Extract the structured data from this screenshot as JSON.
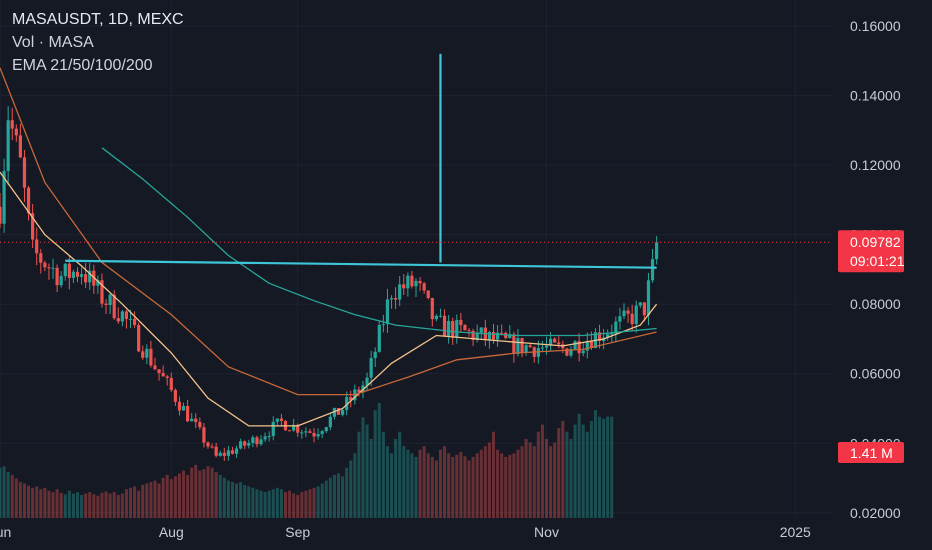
{
  "header": {
    "title": "MASAUSDT, 1D, MEXC",
    "volume_label": "Vol · MASA",
    "ema_label": "EMA 21/50/100/200"
  },
  "colors": {
    "background": "#151924",
    "grid": "#1f2330",
    "axis_text": "#c9ccd4",
    "up": "#26a69a",
    "down": "#ef5350",
    "ema21": "#f5c28a",
    "ema50": "#c8683a",
    "ema200": "#26a69a",
    "trendline": "#3ec6d8",
    "badge": "#f23645"
  },
  "chart_data": {
    "type": "candlestick",
    "title": "MASAUSDT, 1D, MEXC",
    "y_ticks": [
      "0.16000",
      "0.14000",
      "0.12000",
      "0.10000",
      "0.08000",
      "0.06000",
      "0.04000",
      "0.02000"
    ],
    "y_tick_values": [
      0.16,
      0.14,
      0.12,
      0.1,
      0.08,
      0.06,
      0.04,
      0.02
    ],
    "x_ticks": [
      "Jun",
      "Aug",
      "Sep",
      "Nov",
      "2025"
    ],
    "x_tick_dates": [
      "2024-06-20",
      "2024-08-01",
      "2024-09-01",
      "2024-11-01",
      "2025-01-01"
    ],
    "x_range": [
      "2024-06-20",
      "2025-01-10"
    ],
    "y_range": [
      0.0185,
      0.1675
    ],
    "grid": true,
    "last_price": "0.09782",
    "last_price_value": 0.09782,
    "countdown": "09:01:21",
    "volume_last": "1.41 M",
    "anchors": [
      {
        "date": "2024-06-20",
        "price": 0.108
      },
      {
        "date": "2024-06-22",
        "price": 0.135
      },
      {
        "date": "2024-06-25",
        "price": 0.12
      },
      {
        "date": "2024-06-28",
        "price": 0.095
      },
      {
        "date": "2024-07-05",
        "price": 0.088
      },
      {
        "date": "2024-07-10",
        "price": 0.09
      },
      {
        "date": "2024-07-15",
        "price": 0.082
      },
      {
        "date": "2024-07-20",
        "price": 0.077
      },
      {
        "date": "2024-07-28",
        "price": 0.062
      },
      {
        "date": "2024-08-05",
        "price": 0.048
      },
      {
        "date": "2024-08-12",
        "price": 0.036
      },
      {
        "date": "2024-08-20",
        "price": 0.04
      },
      {
        "date": "2024-08-28",
        "price": 0.046
      },
      {
        "date": "2024-09-05",
        "price": 0.043
      },
      {
        "date": "2024-09-12",
        "price": 0.05
      },
      {
        "date": "2024-09-18",
        "price": 0.058
      },
      {
        "date": "2024-09-24",
        "price": 0.084
      },
      {
        "date": "2024-09-30",
        "price": 0.086
      },
      {
        "date": "2024-10-05",
        "price": 0.074
      },
      {
        "date": "2024-10-15",
        "price": 0.071
      },
      {
        "date": "2024-10-25",
        "price": 0.068
      },
      {
        "date": "2024-11-05",
        "price": 0.067
      },
      {
        "date": "2024-11-15",
        "price": 0.072
      },
      {
        "date": "2024-11-20",
        "price": 0.075
      },
      {
        "date": "2024-11-25",
        "price": 0.079
      },
      {
        "date": "2024-11-27",
        "price": 0.09
      },
      {
        "date": "2024-11-28",
        "price": 0.0978
      }
    ],
    "ema_series": [
      {
        "period": 21,
        "color_key": "ema21",
        "points": [
          {
            "date": "2024-06-20",
            "price": 0.118
          },
          {
            "date": "2024-07-01",
            "price": 0.1
          },
          {
            "date": "2024-07-10",
            "price": 0.091
          },
          {
            "date": "2024-07-20",
            "price": 0.08
          },
          {
            "date": "2024-08-01",
            "price": 0.066
          },
          {
            "date": "2024-08-10",
            "price": 0.053
          },
          {
            "date": "2024-08-20",
            "price": 0.045
          },
          {
            "date": "2024-09-01",
            "price": 0.045
          },
          {
            "date": "2024-09-12",
            "price": 0.05
          },
          {
            "date": "2024-09-24",
            "price": 0.063
          },
          {
            "date": "2024-10-05",
            "price": 0.071
          },
          {
            "date": "2024-10-15",
            "price": 0.07
          },
          {
            "date": "2024-10-25",
            "price": 0.069
          },
          {
            "date": "2024-11-05",
            "price": 0.068
          },
          {
            "date": "2024-11-15",
            "price": 0.07
          },
          {
            "date": "2024-11-24",
            "price": 0.074
          },
          {
            "date": "2024-11-28",
            "price": 0.08
          }
        ]
      },
      {
        "period": 50,
        "color_key": "ema50",
        "points": [
          {
            "date": "2024-06-20",
            "price": 0.148
          },
          {
            "date": "2024-07-01",
            "price": 0.115
          },
          {
            "date": "2024-07-15",
            "price": 0.092
          },
          {
            "date": "2024-08-01",
            "price": 0.077
          },
          {
            "date": "2024-08-15",
            "price": 0.062
          },
          {
            "date": "2024-09-01",
            "price": 0.054
          },
          {
            "date": "2024-09-15",
            "price": 0.054
          },
          {
            "date": "2024-09-28",
            "price": 0.059
          },
          {
            "date": "2024-10-10",
            "price": 0.064
          },
          {
            "date": "2024-10-25",
            "price": 0.066
          },
          {
            "date": "2024-11-10",
            "price": 0.067
          },
          {
            "date": "2024-11-28",
            "price": 0.072
          }
        ]
      },
      {
        "period": 200,
        "color_key": "ema200",
        "points": [
          {
            "date": "2024-07-15",
            "price": 0.125
          },
          {
            "date": "2024-07-25",
            "price": 0.116
          },
          {
            "date": "2024-08-05",
            "price": 0.105
          },
          {
            "date": "2024-08-15",
            "price": 0.094
          },
          {
            "date": "2024-08-25",
            "price": 0.086
          },
          {
            "date": "2024-09-05",
            "price": 0.081
          },
          {
            "date": "2024-09-15",
            "price": 0.077
          },
          {
            "date": "2024-09-25",
            "price": 0.074
          },
          {
            "date": "2024-10-10",
            "price": 0.072
          },
          {
            "date": "2024-10-25",
            "price": 0.071
          },
          {
            "date": "2024-11-10",
            "price": 0.071
          },
          {
            "date": "2024-11-28",
            "price": 0.073
          }
        ]
      }
    ],
    "drawings": [
      {
        "kind": "trendline",
        "from": {
          "date": "2024-07-06",
          "price": 0.0925
        },
        "to": {
          "date": "2024-11-28",
          "price": 0.0905
        }
      },
      {
        "kind": "vertical",
        "date": "2024-10-06",
        "from_price": 0.092,
        "to_price": 0.152
      }
    ],
    "volume_series": {
      "start_date": "2024-06-20",
      "values": [
        0.7,
        0.72,
        0.64,
        0.6,
        0.55,
        0.5,
        0.48,
        0.45,
        0.42,
        0.44,
        0.4,
        0.42,
        0.38,
        0.36,
        0.4,
        0.35,
        0.33,
        0.38,
        0.34,
        0.36,
        0.32,
        0.34,
        0.36,
        0.33,
        0.31,
        0.35,
        0.37,
        0.34,
        0.36,
        0.32,
        0.34,
        0.4,
        0.42,
        0.44,
        0.38,
        0.46,
        0.48,
        0.5,
        0.52,
        0.48,
        0.56,
        0.6,
        0.54,
        0.58,
        0.62,
        0.66,
        0.6,
        0.7,
        0.74,
        0.66,
        0.68,
        0.72,
        0.7,
        0.64,
        0.6,
        0.56,
        0.52,
        0.5,
        0.48,
        0.5,
        0.46,
        0.44,
        0.42,
        0.4,
        0.38,
        0.36,
        0.38,
        0.4,
        0.42,
        0.4,
        0.36,
        0.38,
        0.34,
        0.32,
        0.36,
        0.38,
        0.4,
        0.42,
        0.44,
        0.48,
        0.52,
        0.56,
        0.6,
        0.62,
        0.58,
        0.7,
        0.8,
        0.9,
        1.2,
        1.4,
        1.3,
        1.1,
        1.5,
        1.6,
        1.2,
        1.0,
        0.9,
        1.1,
        1.2,
        1.0,
        0.95,
        0.9,
        0.85,
        0.95,
        1.0,
        0.9,
        0.85,
        0.8,
        0.95,
        1.0,
        0.9,
        0.85,
        0.88,
        0.92,
        0.86,
        0.8,
        0.85,
        0.9,
        0.95,
        1.0,
        1.05,
        1.2,
        0.95,
        0.9,
        0.85,
        0.88,
        0.9,
        0.95,
        1.0,
        1.1,
        1.05,
        1.0,
        1.2,
        1.3,
        1.1,
        1.0,
        1.05,
        1.25,
        1.35,
        1.2,
        1.1,
        1.3,
        1.45,
        1.3,
        1.2,
        1.35,
        1.5,
        1.41,
        1.38,
        1.41,
        1.41
      ],
      "unit": "M"
    }
  }
}
